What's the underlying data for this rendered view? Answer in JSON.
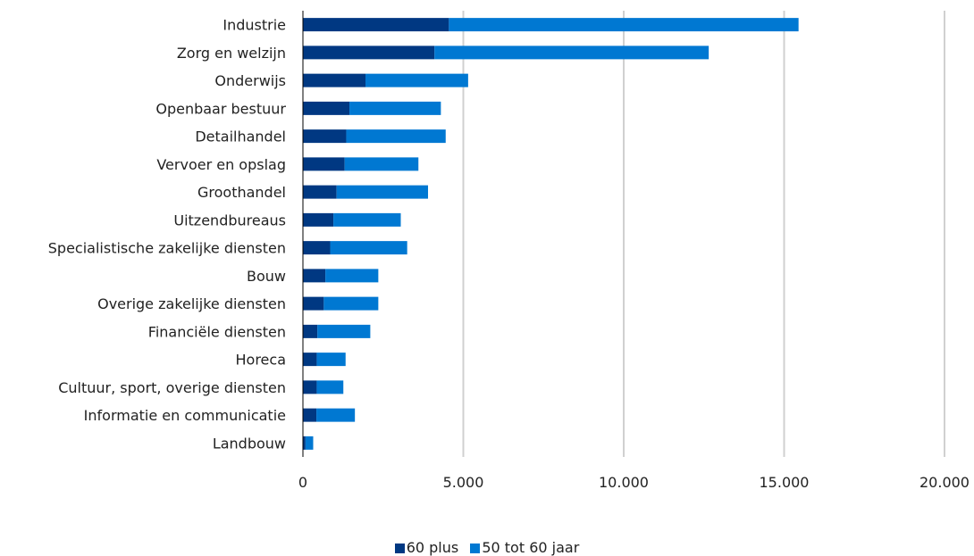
{
  "chart_data": {
    "type": "bar",
    "orientation": "horizontal",
    "stacked": true,
    "categories": [
      "Industrie",
      "Zorg en welzijn",
      "Onderwijs",
      "Openbaar bestuur",
      "Detailhandel",
      "Vervoer en opslag",
      "Groothandel",
      "Uitzendbureaus",
      "Specialistische zakelijke diensten",
      "Bouw",
      "Overige zakelijke diensten",
      "Financiële diensten",
      "Horeca",
      "Cultuur, sport, overige diensten",
      "Informatie en communicatie",
      "Landbouw"
    ],
    "series": [
      {
        "name": "60 plus",
        "color": "#003882",
        "values": [
          4550,
          4100,
          1950,
          1450,
          1350,
          1300,
          1050,
          950,
          850,
          700,
          650,
          450,
          430,
          430,
          420,
          80
        ]
      },
      {
        "name": "50 tot 60 jaar",
        "color": "#0078d2",
        "values": [
          10900,
          8550,
          3200,
          2850,
          3100,
          2300,
          2850,
          2100,
          2400,
          1650,
          1700,
          1650,
          900,
          830,
          1200,
          240
        ]
      }
    ],
    "xlim": [
      0,
      20000
    ],
    "xticks": [
      0,
      5000,
      10000,
      15000,
      20000
    ],
    "xtick_labels": [
      "0",
      "5.000",
      "10.000",
      "15.000",
      "20.000"
    ],
    "grid": "vertical",
    "legend_position": "bottom"
  },
  "colors": {
    "grid": "#d0d0d0",
    "axis": "#000000",
    "text": "#222222"
  }
}
